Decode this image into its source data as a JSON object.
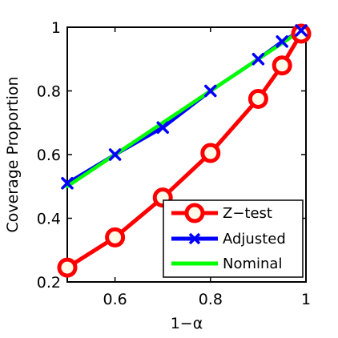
{
  "chart_data": {
    "type": "line",
    "xlabel": "1−α",
    "ylabel": "Coverage Proportion",
    "xlim": [
      0.5,
      1.0
    ],
    "ylim": [
      0.2,
      1.0
    ],
    "xticks": [
      0.6,
      0.8,
      1.0
    ],
    "xtick_labels": [
      "0.6",
      "0.8",
      "1"
    ],
    "yticks": [
      0.2,
      0.4,
      0.6,
      0.8,
      1.0
    ],
    "ytick_labels": [
      "0.2",
      "0.4",
      "0.6",
      "0.8",
      "1"
    ],
    "grid": false,
    "legend_position": "lower-right",
    "series": [
      {
        "name": "Z−test",
        "color": "#ff0000",
        "marker": "circle",
        "x": [
          0.5,
          0.6,
          0.7,
          0.8,
          0.9,
          0.95,
          0.99
        ],
        "y": [
          0.245,
          0.34,
          0.465,
          0.605,
          0.775,
          0.88,
          0.98
        ]
      },
      {
        "name": "Adjusted",
        "color": "#0000ff",
        "marker": "x",
        "x": [
          0.5,
          0.6,
          0.7,
          0.8,
          0.9,
          0.95,
          0.99
        ],
        "y": [
          0.51,
          0.6,
          0.685,
          0.8,
          0.9,
          0.955,
          0.99
        ]
      },
      {
        "name": "Nominal",
        "color": "#00ff00",
        "marker": "none",
        "x": [
          0.5,
          0.99
        ],
        "y": [
          0.5,
          0.99
        ]
      }
    ]
  }
}
